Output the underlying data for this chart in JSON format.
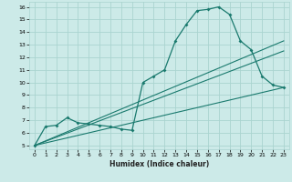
{
  "xlabel": "Humidex (Indice chaleur)",
  "ylabel": "",
  "bg_color": "#cceae8",
  "grid_color": "#aad4d0",
  "line_color": "#1a7a6e",
  "xlim_min": -0.5,
  "xlim_max": 23.5,
  "ylim_min": 4.7,
  "ylim_max": 16.4,
  "xticks": [
    0,
    1,
    2,
    3,
    4,
    5,
    6,
    7,
    8,
    9,
    10,
    11,
    12,
    13,
    14,
    15,
    16,
    17,
    18,
    19,
    20,
    21,
    22,
    23
  ],
  "yticks": [
    5,
    6,
    7,
    8,
    9,
    10,
    11,
    12,
    13,
    14,
    15,
    16
  ],
  "line1_x": [
    0,
    1,
    2,
    3,
    4,
    5,
    6,
    7,
    8,
    9,
    10,
    11,
    12,
    13,
    14,
    15,
    16,
    17,
    18,
    19,
    20,
    21,
    22,
    23
  ],
  "line1_y": [
    5.0,
    6.5,
    6.6,
    7.2,
    6.8,
    6.7,
    6.6,
    6.5,
    6.3,
    6.2,
    10.0,
    10.5,
    11.0,
    13.3,
    14.6,
    15.7,
    15.8,
    16.0,
    15.4,
    13.3,
    12.6,
    10.5,
    9.8,
    9.6
  ],
  "line2_x": [
    0,
    23
  ],
  "line2_y": [
    5.0,
    9.6
  ],
  "line3_x": [
    0,
    23
  ],
  "line3_y": [
    5.0,
    13.3
  ],
  "line4_x": [
    0,
    23
  ],
  "line4_y": [
    5.0,
    12.5
  ],
  "dot_x": [
    0,
    1,
    2,
    3,
    4,
    5,
    6,
    7,
    8,
    9,
    10,
    11,
    12,
    13,
    14,
    15,
    16,
    17,
    18,
    19,
    20,
    21,
    22,
    23
  ],
  "dot_y": [
    5.0,
    6.5,
    6.6,
    7.2,
    6.8,
    6.7,
    6.6,
    6.5,
    6.3,
    6.2,
    10.0,
    10.5,
    11.0,
    13.3,
    14.6,
    15.7,
    15.8,
    16.0,
    15.4,
    13.3,
    12.6,
    10.5,
    9.8,
    9.6
  ],
  "xlabel_fontsize": 5.5,
  "tick_fontsize": 4.5
}
